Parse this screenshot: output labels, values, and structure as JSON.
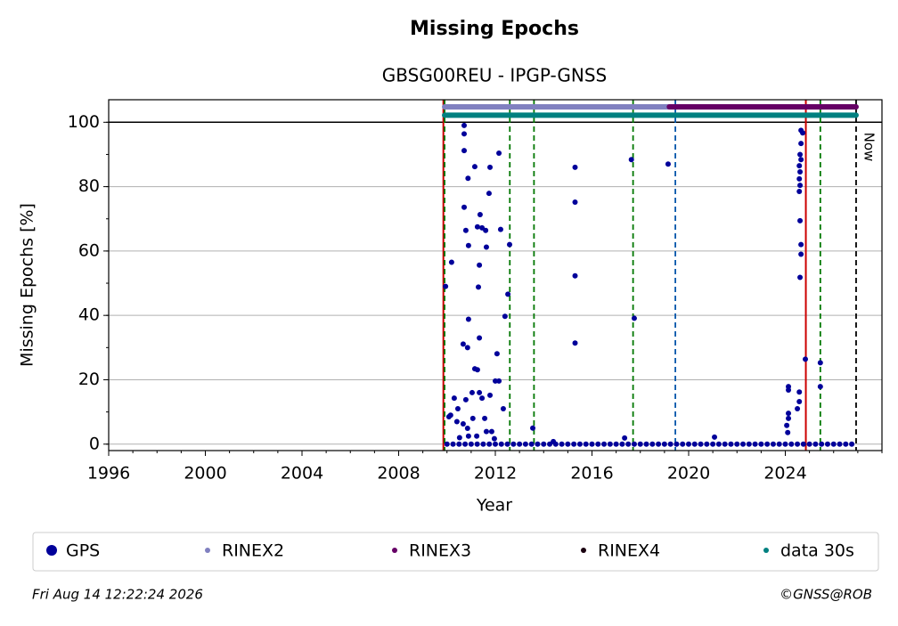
{
  "chart_data": {
    "type": "scatter",
    "title": "Missing Epochs",
    "subtitle": "GBSG00REU - IPGP-GNSS",
    "x_label": "Year",
    "y_label": "Missing Epochs [%]",
    "xlim": [
      1996,
      2028
    ],
    "ylim": [
      -2,
      107
    ],
    "xticks": [
      1996,
      2000,
      2004,
      2008,
      2012,
      2016,
      2020,
      2024
    ],
    "yticks": [
      0,
      20,
      40,
      60,
      80,
      100
    ],
    "grid": true,
    "hline": 100,
    "vlines": [
      {
        "x": 2009.85,
        "color": "#cc0000",
        "style": "solid"
      },
      {
        "x": 2009.9,
        "color": "#007700",
        "style": "dashed"
      },
      {
        "x": 2012.6,
        "color": "#007700",
        "style": "dashed"
      },
      {
        "x": 2013.6,
        "color": "#007700",
        "style": "dashed"
      },
      {
        "x": 2017.7,
        "color": "#007700",
        "style": "dashed"
      },
      {
        "x": 2019.45,
        "color": "#0055aa",
        "style": "dashed"
      },
      {
        "x": 2024.85,
        "color": "#cc0000",
        "style": "solid"
      },
      {
        "x": 2025.45,
        "color": "#007700",
        "style": "dashed"
      },
      {
        "x": 2026.93,
        "color": "#000000",
        "style": "dashed"
      }
    ],
    "annotations": [
      {
        "text": "Now",
        "x": 2026.93
      }
    ],
    "series": [
      {
        "name": "GPS",
        "color": "#00009a",
        "kind": "points",
        "x": [
          2009.94,
          2010.19,
          2010.71,
          2010.71,
          2010.71,
          2010.87,
          2011.15,
          2010.71,
          2010.78,
          2010.89,
          2010.89,
          2011.26,
          2011.37,
          2011.45,
          2011.6,
          2011.74,
          2011.78,
          2012.15,
          2012.22,
          2012.59,
          2012.52,
          2012.4,
          2011.63,
          2011.34,
          2011.3,
          2011.34,
          2010.67,
          2010.85,
          2011.15,
          2011.26,
          2012.07,
          2012.0,
          2012.15,
          2010.3,
          2010.45,
          2010.78,
          2011.04,
          2011.34,
          2011.45,
          2011.78,
          2012.33,
          2010.08,
          2010.15,
          2013.55,
          2014.4,
          2015.3,
          2015.3,
          2015.3,
          2015.3,
          2017.63,
          2017.75,
          2017.35,
          2019.15,
          2021.07,
          2024.65,
          2024.72,
          2024.65,
          2024.61,
          2024.65,
          2024.58,
          2024.61,
          2024.58,
          2024.61,
          2024.58,
          2024.61,
          2024.65,
          2024.65,
          2024.61,
          2024.83,
          2024.13,
          2024.13,
          2024.58,
          2024.58,
          2024.5,
          2024.13,
          2024.13,
          2024.06,
          2024.1,
          2010.41,
          2010.67,
          2010.85,
          2011.07,
          2011.56,
          2011.85,
          2011.96,
          2011.63,
          2011.23,
          2010.89,
          2010.52,
          2010.0,
          2010.25,
          2010.5,
          2010.75,
          2011.0,
          2011.25,
          2011.5,
          2011.75,
          2012.0,
          2012.25,
          2012.5,
          2012.75,
          2013.0,
          2013.25,
          2013.5,
          2013.75,
          2014.0,
          2014.25,
          2014.5,
          2014.75,
          2015.0,
          2015.25,
          2015.5,
          2015.75,
          2016.0,
          2016.25,
          2016.5,
          2016.75,
          2017.0,
          2017.25,
          2017.5,
          2017.75,
          2018.0,
          2018.25,
          2018.5,
          2018.75,
          2019.0,
          2019.25,
          2019.5,
          2019.75,
          2020.0,
          2020.25,
          2020.5,
          2020.75,
          2021.0,
          2021.25,
          2021.5,
          2021.75,
          2022.0,
          2022.25,
          2022.5,
          2022.75,
          2023.0,
          2023.25,
          2023.5,
          2023.75,
          2024.0,
          2024.25,
          2024.5,
          2024.75,
          2025.0,
          2025.25,
          2025.5,
          2025.75,
          2026.0,
          2026.25,
          2026.5,
          2026.75,
          2025.45,
          2025.45
        ],
        "values": [
          49,
          56.5,
          99,
          96.4,
          91.2,
          82.6,
          86.2,
          73.6,
          66.4,
          61.7,
          38.8,
          67.5,
          71.3,
          67.2,
          66.4,
          77.9,
          86,
          90.4,
          66.7,
          62,
          46.6,
          39.7,
          61.2,
          55.6,
          48.8,
          33,
          31.1,
          30,
          23.4,
          23.1,
          28.1,
          19.6,
          19.6,
          14.3,
          11,
          13.8,
          16,
          16,
          14.3,
          15.2,
          11,
          8.5,
          9,
          5,
          0.8,
          86,
          75.2,
          52.3,
          31.4,
          88.4,
          39.1,
          1.9,
          87,
          2.2,
          97.5,
          96.7,
          93.4,
          90,
          88.4,
          86.5,
          84.6,
          82.4,
          80.4,
          78.5,
          69.4,
          62,
          59,
          51.8,
          26.4,
          17.9,
          16.8,
          16.2,
          13.2,
          11,
          9.6,
          8,
          5.8,
          3.6,
          7,
          6.3,
          4.9,
          8,
          8,
          3.9,
          1.7,
          3.9,
          2.5,
          2.5,
          2,
          0,
          0,
          0,
          0,
          0,
          0,
          0,
          0,
          0,
          0,
          0,
          0,
          0,
          0,
          0,
          0,
          0,
          0,
          0,
          0,
          0,
          0,
          0,
          0,
          0,
          0,
          0,
          0,
          0,
          0,
          0,
          0,
          0,
          0,
          0,
          0,
          0,
          0,
          0,
          0,
          0,
          0,
          0,
          0,
          0,
          0,
          0,
          0,
          0,
          0,
          0,
          0,
          0,
          0,
          0,
          0,
          0,
          0,
          0,
          0,
          0,
          0,
          0,
          0,
          0,
          0,
          0,
          0,
          25.3,
          17.9
        ]
      },
      {
        "name": "RINEX2",
        "color": "#8080c0",
        "kind": "bar",
        "x": [
          2009.9,
          2019.2
        ],
        "values": [
          104.8,
          104.8
        ]
      },
      {
        "name": "RINEX3",
        "color": "#660066",
        "kind": "bar",
        "x": [
          2019.2,
          2026.93
        ],
        "values": [
          104.8,
          104.8
        ]
      },
      {
        "name": "RINEX4",
        "color": "#1a0010",
        "kind": "bar",
        "x": [],
        "values": []
      },
      {
        "name": "data 30s",
        "color": "#008080",
        "kind": "bar",
        "x": [
          2009.9,
          2026.93
        ],
        "values": [
          102.2,
          102.2
        ]
      }
    ],
    "timestamp": "Fri Aug 14 12:22:24 2026",
    "credit": "©GNSS@ROB"
  }
}
